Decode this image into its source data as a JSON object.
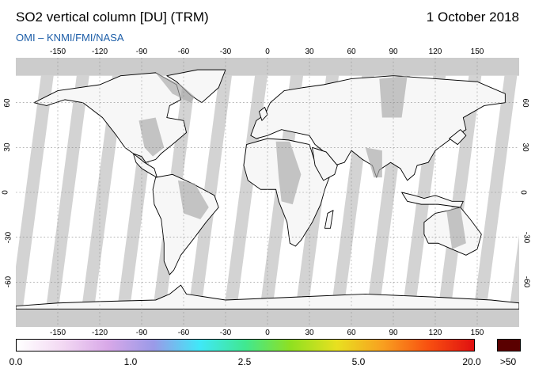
{
  "header": {
    "title": "SO2 vertical column [DU] (TRM)",
    "date": "1 October 2018",
    "credit": "OMI  –  KNMI/FMI/NASA"
  },
  "map": {
    "projection": "plate-carree",
    "lon_ticks": [
      "-150",
      "-120",
      "-90",
      "-60",
      "-30",
      "0",
      "30",
      "60",
      "90",
      "120",
      "150"
    ],
    "lat_ticks": [
      "60",
      "30",
      "0",
      "-30",
      "-60"
    ],
    "colors": {
      "ocean_valid": "#ffffff",
      "missing_data": "#cccccc",
      "land_mask": "#a8a8a8",
      "coastline": "#000000",
      "gridline": "#888888"
    }
  },
  "colorbar": {
    "labels": [
      "0.0",
      "1.0",
      "2.5",
      "5.0",
      "20.0",
      ">50"
    ],
    "gradient": [
      "#ffffff",
      "#f3d9f3",
      "#d8a8e8",
      "#9a9ae8",
      "#40e8f8",
      "#40e890",
      "#90e020",
      "#e8e020",
      "#f8a020",
      "#f85010",
      "#e01010"
    ],
    "overflow_color": "#5a0000"
  }
}
